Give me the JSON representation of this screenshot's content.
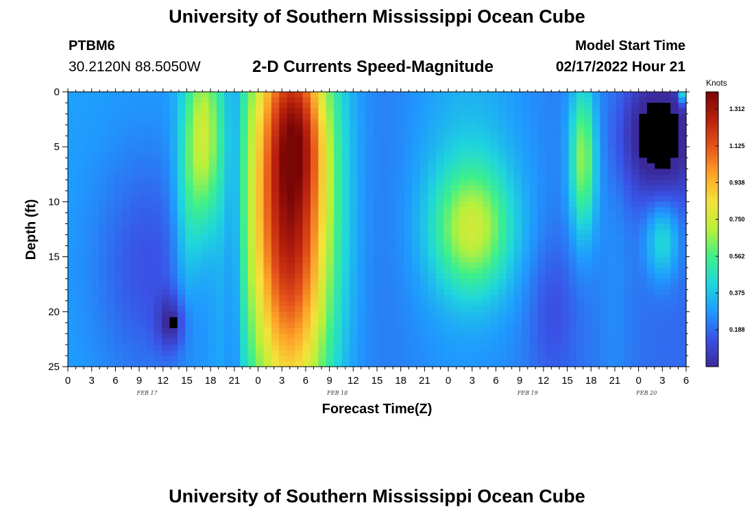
{
  "header": {
    "title": "University of Southern Mississippi Ocean Cube",
    "station": "PTBM6",
    "coords": "30.2120N  88.5050W",
    "subtitle": "2-D Currents Speed-Magnitude",
    "model_start_label": "Model Start Time",
    "model_start_value": "02/17/2022 Hour 21"
  },
  "footer": {
    "title": "University of Southern Mississippi Ocean Cube"
  },
  "chart_data": {
    "type": "heatmap",
    "title": "2-D Currents Speed-Magnitude",
    "xlabel": "Forecast Time(Z)",
    "ylabel": "Depth (ft)",
    "x_hours_start": 0,
    "x_hours_end": 78,
    "x_ticks": [
      {
        "h": 0,
        "label": "0"
      },
      {
        "h": 3,
        "label": "3"
      },
      {
        "h": 6,
        "label": "6"
      },
      {
        "h": 9,
        "label": "9"
      },
      {
        "h": 12,
        "label": "12"
      },
      {
        "h": 15,
        "label": "15"
      },
      {
        "h": 18,
        "label": "18"
      },
      {
        "h": 21,
        "label": "21"
      },
      {
        "h": 24,
        "label": "0"
      },
      {
        "h": 27,
        "label": "3"
      },
      {
        "h": 30,
        "label": "6"
      },
      {
        "h": 33,
        "label": "9"
      },
      {
        "h": 36,
        "label": "12"
      },
      {
        "h": 39,
        "label": "15"
      },
      {
        "h": 42,
        "label": "18"
      },
      {
        "h": 45,
        "label": "21"
      },
      {
        "h": 48,
        "label": "0"
      },
      {
        "h": 51,
        "label": "3"
      },
      {
        "h": 54,
        "label": "6"
      },
      {
        "h": 57,
        "label": "9"
      },
      {
        "h": 60,
        "label": "12"
      },
      {
        "h": 63,
        "label": "15"
      },
      {
        "h": 66,
        "label": "18"
      },
      {
        "h": 69,
        "label": "21"
      },
      {
        "h": 72,
        "label": "0"
      },
      {
        "h": 75,
        "label": "3"
      },
      {
        "h": 78,
        "label": "6"
      }
    ],
    "date_labels": [
      {
        "h": 10,
        "label": "FEB 17"
      },
      {
        "h": 34,
        "label": "FEB 18"
      },
      {
        "h": 58,
        "label": "FEB 19"
      },
      {
        "h": 73,
        "label": "FEB 20"
      }
    ],
    "y_ticks": [
      0,
      5,
      10,
      15,
      20,
      25
    ],
    "ylim": [
      0,
      25
    ],
    "colorbar": {
      "units": "Knots",
      "min": 0,
      "max": 1.4,
      "tick_labels": [
        "1.312",
        "1.125",
        "0.938",
        "0.750",
        "0.562",
        "0.375",
        "0.188"
      ],
      "colors": [
        "#3b2a9b",
        "#3a52e6",
        "#1f9aff",
        "#1fd6dc",
        "#3ef08a",
        "#b8f03a",
        "#f4e23a",
        "#fda429",
        "#e6541a",
        "#b8200d",
        "#7a0505"
      ]
    },
    "grid_cols": 79,
    "grid_rows": 50,
    "features": [
      {
        "h": 0,
        "d": 12.5,
        "sh": 80,
        "sd": 100,
        "v": 0.3
      },
      {
        "h": 10,
        "d": 16,
        "sh": 5,
        "sd": 8,
        "v": -0.16
      },
      {
        "h": 13,
        "d": 21,
        "sh": 1.2,
        "sd": 1.8,
        "v": -0.2
      },
      {
        "h": 13,
        "d": 21,
        "sh": 0.4,
        "sd": 0.4,
        "v": -0.1
      },
      {
        "h": 17,
        "d": 4,
        "sh": 1.7,
        "sd": 6,
        "v": 0.45
      },
      {
        "h": 15,
        "d": 12,
        "sh": 1.2,
        "sd": 6,
        "v": 0.15
      },
      {
        "h": 21,
        "d": 12,
        "sh": 0.8,
        "sd": 20,
        "v": -0.15
      },
      {
        "h": 28,
        "d": 10,
        "sh": 3.8,
        "sd": 14,
        "v": 1.05
      },
      {
        "h": 29,
        "d": 4,
        "sh": 2.2,
        "sd": 4,
        "v": 0.2
      },
      {
        "h": 39,
        "d": 12,
        "sh": 4,
        "sd": 20,
        "v": -0.05
      },
      {
        "h": 51,
        "d": 12.5,
        "sh": 3.5,
        "sd": 4,
        "v": 0.4
      },
      {
        "h": 51,
        "d": 8,
        "sh": 5,
        "sd": 10,
        "v": 0.12
      },
      {
        "h": 61,
        "d": 20,
        "sh": 2.2,
        "sd": 5,
        "v": -0.1
      },
      {
        "h": 65,
        "d": 6,
        "sh": 1.2,
        "sd": 5,
        "v": 0.45
      },
      {
        "h": 69,
        "d": 12,
        "sh": 1.5,
        "sd": 20,
        "v": 0.05
      },
      {
        "h": 74.5,
        "d": 4,
        "sh": 3.5,
        "sd": 4,
        "v": -0.3
      },
      {
        "h": 75,
        "d": 13.5,
        "sh": 1.5,
        "sd": 2.5,
        "v": 0.25
      },
      {
        "h": 78,
        "d": 0,
        "sh": 0.6,
        "sd": 0.8,
        "v": 0.5
      }
    ]
  }
}
